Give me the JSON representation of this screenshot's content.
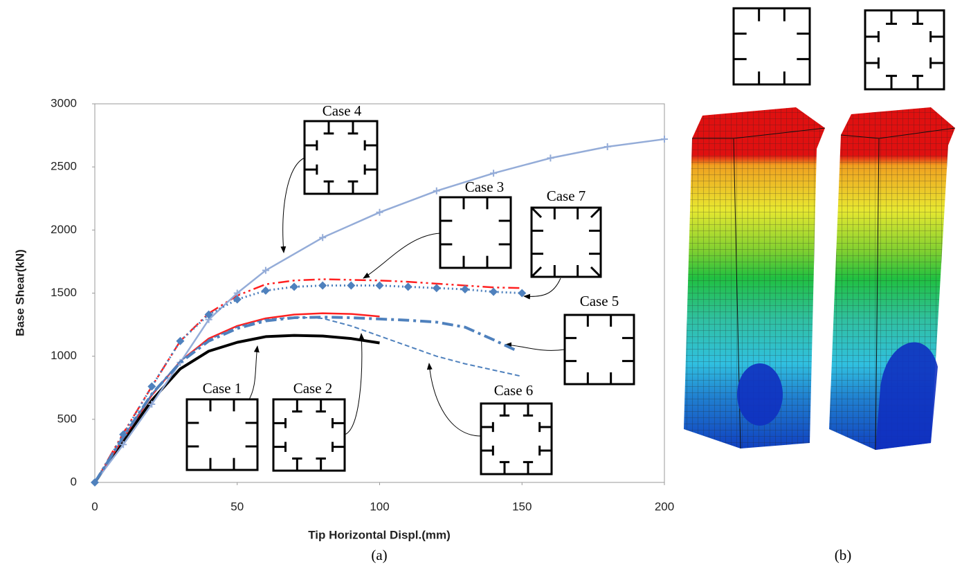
{
  "chart_data": {
    "type": "line",
    "x_label": "Tip Horizontal Displ.(mm)",
    "y_label": "Base Shear(kN)",
    "xlim": [
      0,
      200
    ],
    "xticks": [
      0,
      50,
      100,
      150,
      200
    ],
    "ylim": [
      0,
      3000
    ],
    "yticks": [
      0,
      500,
      1000,
      1500,
      2000,
      2500,
      3000
    ],
    "series": [
      {
        "name": "Case 1",
        "color": "#000000",
        "style": "solid-thick",
        "x": [
          0,
          10,
          20,
          30,
          40,
          50,
          60,
          70,
          80,
          90,
          100
        ],
        "values": [
          0,
          330,
          650,
          900,
          1040,
          1110,
          1155,
          1165,
          1160,
          1140,
          1105
        ]
      },
      {
        "name": "Case 2",
        "color": "#ff2020",
        "style": "solid",
        "x": [
          0,
          10,
          20,
          30,
          40,
          50,
          60,
          70,
          80,
          90,
          100
        ],
        "values": [
          0,
          350,
          690,
          960,
          1140,
          1240,
          1300,
          1330,
          1340,
          1335,
          1315
        ]
      },
      {
        "name": "Case 3",
        "color": "#ff2020",
        "style": "dash-dot-dot",
        "x": [
          0,
          10,
          20,
          30,
          40,
          50,
          60,
          70,
          80,
          90,
          100,
          110,
          120,
          130,
          140,
          150
        ],
        "values": [
          0,
          390,
          760,
          1120,
          1340,
          1480,
          1570,
          1600,
          1610,
          1605,
          1600,
          1590,
          1575,
          1560,
          1545,
          1540
        ]
      },
      {
        "name": "Case 4",
        "color": "#94acd8",
        "style": "solid",
        "marker": "plus",
        "x": [
          0,
          10,
          20,
          30,
          40,
          50,
          60,
          80,
          100,
          120,
          140,
          160,
          180,
          200
        ],
        "values": [
          0,
          300,
          620,
          950,
          1290,
          1500,
          1680,
          1940,
          2140,
          2310,
          2450,
          2570,
          2660,
          2720
        ]
      },
      {
        "name": "Case 5",
        "color": "#4f81bd",
        "style": "dash-dot-thick",
        "x": [
          0,
          10,
          20,
          30,
          40,
          50,
          60,
          70,
          80,
          90,
          100,
          110,
          120,
          130,
          140,
          148
        ],
        "values": [
          0,
          360,
          700,
          950,
          1120,
          1220,
          1280,
          1305,
          1310,
          1305,
          1295,
          1285,
          1270,
          1230,
          1130,
          1045
        ]
      },
      {
        "name": "Case 6",
        "color": "#4f81bd",
        "style": "dash",
        "x": [
          0,
          10,
          20,
          30,
          40,
          50,
          60,
          70,
          80,
          90,
          100,
          110,
          120,
          130,
          140,
          150
        ],
        "values": [
          0,
          360,
          700,
          960,
          1130,
          1230,
          1290,
          1310,
          1300,
          1240,
          1160,
          1080,
          1000,
          940,
          890,
          840
        ]
      },
      {
        "name": "Case 7",
        "color": "#4f81bd",
        "style": "dot",
        "marker": "diamond",
        "x": [
          0,
          10,
          20,
          30,
          40,
          50,
          60,
          70,
          80,
          90,
          100,
          110,
          120,
          130,
          140,
          150
        ],
        "values": [
          0,
          380,
          760,
          1120,
          1330,
          1450,
          1520,
          1550,
          1560,
          1560,
          1560,
          1550,
          1540,
          1530,
          1510,
          1500
        ]
      }
    ],
    "captions": [
      "(a)",
      "(b)"
    ]
  }
}
